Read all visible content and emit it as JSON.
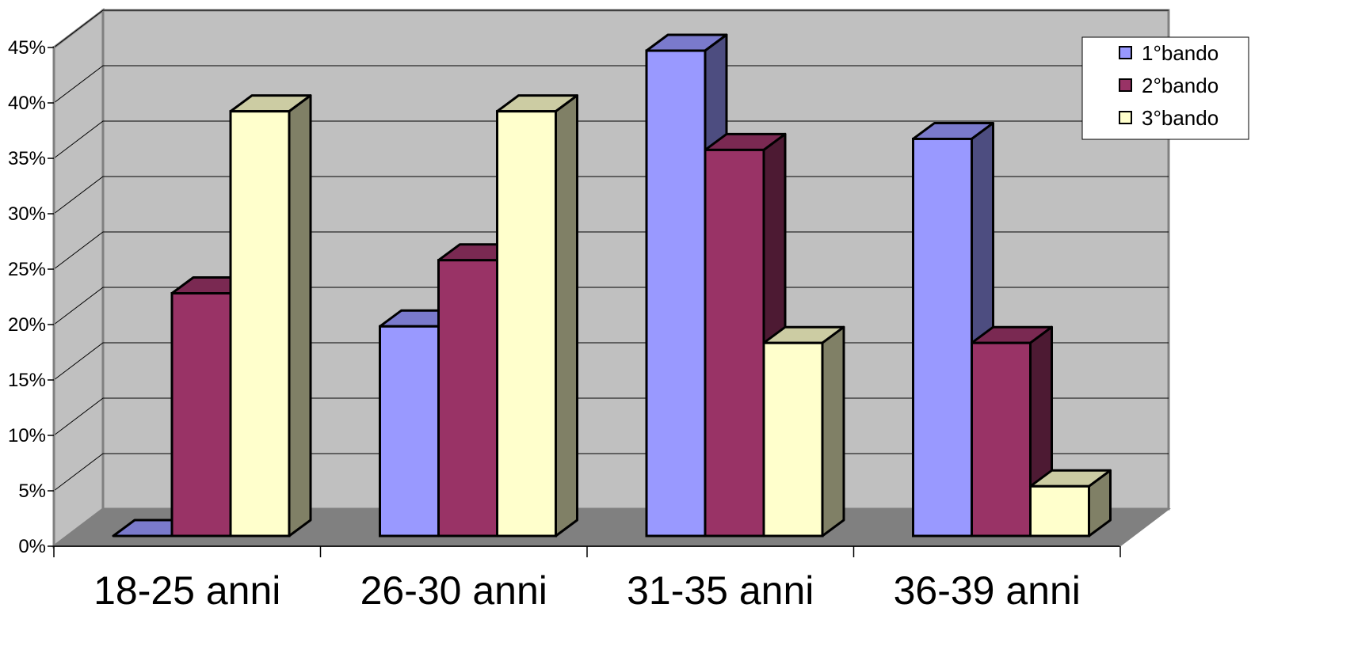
{
  "chart_data": {
    "type": "bar",
    "title": "",
    "xlabel": "",
    "ylabel": "",
    "categories": [
      "18-25 anni",
      "26-30 anni",
      "31-35 anni",
      "36-39 anni"
    ],
    "series": [
      {
        "name": "1°bando",
        "values": [
          0,
          19,
          44,
          36
        ],
        "color": "#9999ff",
        "side_color": "#4d4d80",
        "top_color": "#7a7acc"
      },
      {
        "name": "2°bando",
        "values": [
          22,
          25,
          35,
          17.5
        ],
        "color": "#993366",
        "side_color": "#4d1a33",
        "top_color": "#7a2952"
      },
      {
        "name": "3°bando",
        "values": [
          38.5,
          38.5,
          17.5,
          4.5
        ],
        "color": "#ffffcc",
        "side_color": "#808066",
        "top_color": "#cccca3"
      }
    ],
    "ylim": [
      0,
      45
    ],
    "yticks": [
      0,
      5,
      10,
      15,
      20,
      25,
      30,
      35,
      40,
      45
    ],
    "ytick_labels": [
      "0%",
      "5%",
      "10%",
      "15%",
      "20%",
      "25%",
      "30%",
      "35%",
      "40%",
      "45%"
    ],
    "grid": true,
    "legend_position": "top-right",
    "colors": {
      "wall": "#c0c0c0",
      "floor": "#808080",
      "axis": "#808080",
      "grid": "#000000"
    }
  }
}
